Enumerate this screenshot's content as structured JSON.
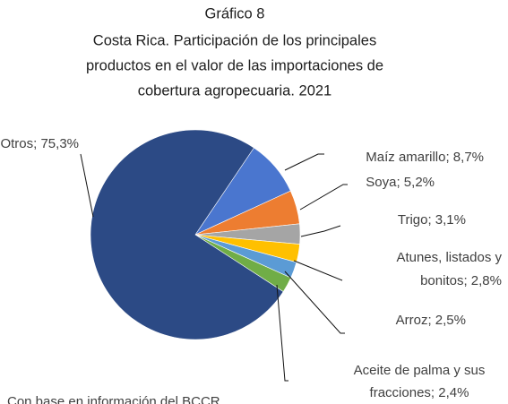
{
  "chart_data": {
    "type": "pie",
    "title": [
      "Gráfico 8",
      "Costa Rica.  Participación de los principales",
      "productos en el valor de las importaciones de",
      "cobertura agropecuaria. 2021"
    ],
    "categories": [
      "Maíz amarillo",
      "Soya",
      "Trigo",
      "Atunes, listados y bonitos",
      "Arroz",
      "Aceite de palma y sus fracciones",
      "Otros"
    ],
    "values": [
      8.7,
      5.2,
      3.1,
      2.8,
      2.5,
      2.4,
      75.3
    ],
    "value_labels": [
      "Maíz amarillo; 8,7%",
      "Soya; 5,2%",
      "Trigo; 3,1%",
      [
        "Atunes, listados y",
        "bonitos; 2,8%"
      ],
      "Arroz; 2,5%",
      [
        "Aceite de palma y sus",
        "fracciones; 2,4%"
      ],
      "Otros; 75,3%"
    ],
    "colors": [
      "#4a76cf",
      "#ed7d31",
      "#a5a5a5",
      "#ffc000",
      "#5b9bd5",
      "#70ad47",
      "#2c4a85"
    ],
    "source": "Con base en información del BCCR"
  }
}
